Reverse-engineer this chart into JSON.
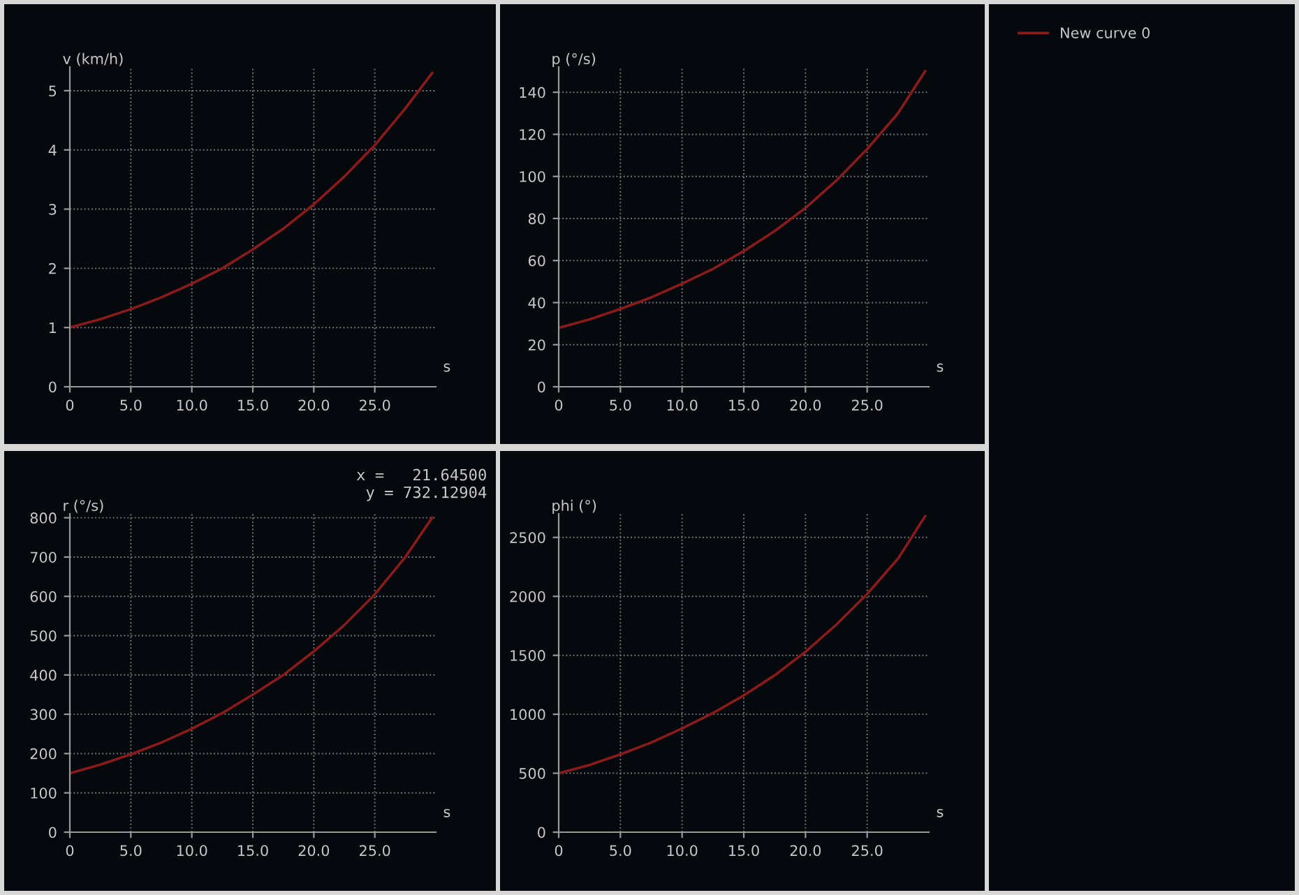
{
  "chart_data": [
    {
      "type": "line",
      "ylabel": "v (km/h)",
      "xlabel": "s",
      "legend": "right",
      "grid": true,
      "series": [
        {
          "name": "New curve 0",
          "color": "#8b1a1a",
          "x": [
            0,
            2.5,
            5,
            7.5,
            10,
            12.5,
            15,
            17.5,
            20,
            22.5,
            25,
            27.5,
            29.7
          ],
          "values": [
            1.0,
            1.14,
            1.31,
            1.51,
            1.74,
            2.0,
            2.32,
            2.67,
            3.08,
            3.55,
            4.08,
            4.7,
            5.3
          ]
        }
      ],
      "xlim": [
        0,
        30
      ],
      "xticks": [
        0,
        {
          "value": 5,
          "label": "5.0"
        },
        {
          "value": 10,
          "label": "10.0"
        },
        {
          "value": 15,
          "label": "15.0"
        },
        {
          "value": 20,
          "label": "20.0"
        },
        {
          "value": 25,
          "label": "25.0"
        }
      ],
      "ylim": [
        0,
        5.4
      ],
      "yticks": [
        0,
        1,
        2,
        3,
        4,
        5
      ]
    },
    {
      "type": "line",
      "ylabel": "p (°/s)",
      "xlabel": "s",
      "grid": true,
      "series": [
        {
          "color": "#8b1a1a",
          "x": [
            0,
            2.5,
            5,
            7.5,
            10,
            12.5,
            15,
            17.5,
            20,
            22.5,
            25,
            27.5,
            29.7
          ],
          "values": [
            28,
            32,
            37,
            42.5,
            49,
            56,
            64.5,
            74,
            85,
            98,
            113,
            130,
            150
          ]
        }
      ],
      "xlim": [
        0,
        30
      ],
      "xticks": [
        0,
        {
          "value": 5,
          "label": "5.0"
        },
        {
          "value": 10,
          "label": "10.0"
        },
        {
          "value": 15,
          "label": "15.0"
        },
        {
          "value": 20,
          "label": "20.0"
        },
        {
          "value": 25,
          "label": "25.0"
        }
      ],
      "ylim": [
        0,
        152
      ],
      "yticks": [
        0,
        20,
        40,
        60,
        80,
        100,
        120,
        140
      ]
    },
    {
      "type": "line",
      "ylabel": "r (°/s)",
      "xlabel": "s",
      "grid": true,
      "annotations": [
        "x =   21.64500\ny = 732.12904"
      ],
      "series": [
        {
          "color": "#8b1a1a",
          "x": [
            0,
            2.5,
            5,
            7.5,
            10,
            12.5,
            15,
            17.5,
            20,
            22.5,
            25,
            27.5,
            29.7
          ],
          "values": [
            150,
            172,
            198,
            228,
            263,
            303,
            350,
            400,
            460,
            527,
            605,
            700,
            800
          ]
        }
      ],
      "xlim": [
        0,
        30
      ],
      "xticks": [
        0,
        {
          "value": 5,
          "label": "5.0"
        },
        {
          "value": 10,
          "label": "10.0"
        },
        {
          "value": 15,
          "label": "15.0"
        },
        {
          "value": 20,
          "label": "20.0"
        },
        {
          "value": 25,
          "label": "25.0"
        }
      ],
      "ylim": [
        0,
        810
      ],
      "yticks": [
        0,
        100,
        200,
        300,
        400,
        500,
        600,
        700,
        800
      ]
    },
    {
      "type": "line",
      "ylabel": "phi (°)",
      "xlabel": "s",
      "grid": true,
      "series": [
        {
          "color": "#8b1a1a",
          "x": [
            0,
            2.5,
            5,
            7.5,
            10,
            12.5,
            15,
            17.5,
            20,
            22.5,
            25,
            27.5,
            29.7
          ],
          "values": [
            500,
            570,
            660,
            760,
            880,
            1010,
            1160,
            1330,
            1530,
            1760,
            2020,
            2320,
            2680
          ]
        }
      ],
      "xlim": [
        0,
        30
      ],
      "xticks": [
        0,
        {
          "value": 5,
          "label": "5.0"
        },
        {
          "value": 10,
          "label": "10.0"
        },
        {
          "value": 15,
          "label": "15.0"
        },
        {
          "value": 20,
          "label": "20.0"
        },
        {
          "value": 25,
          "label": "25.0"
        }
      ],
      "ylim": [
        0,
        2700
      ],
      "yticks": [
        0,
        500,
        1000,
        1500,
        2000,
        2500
      ]
    }
  ]
}
